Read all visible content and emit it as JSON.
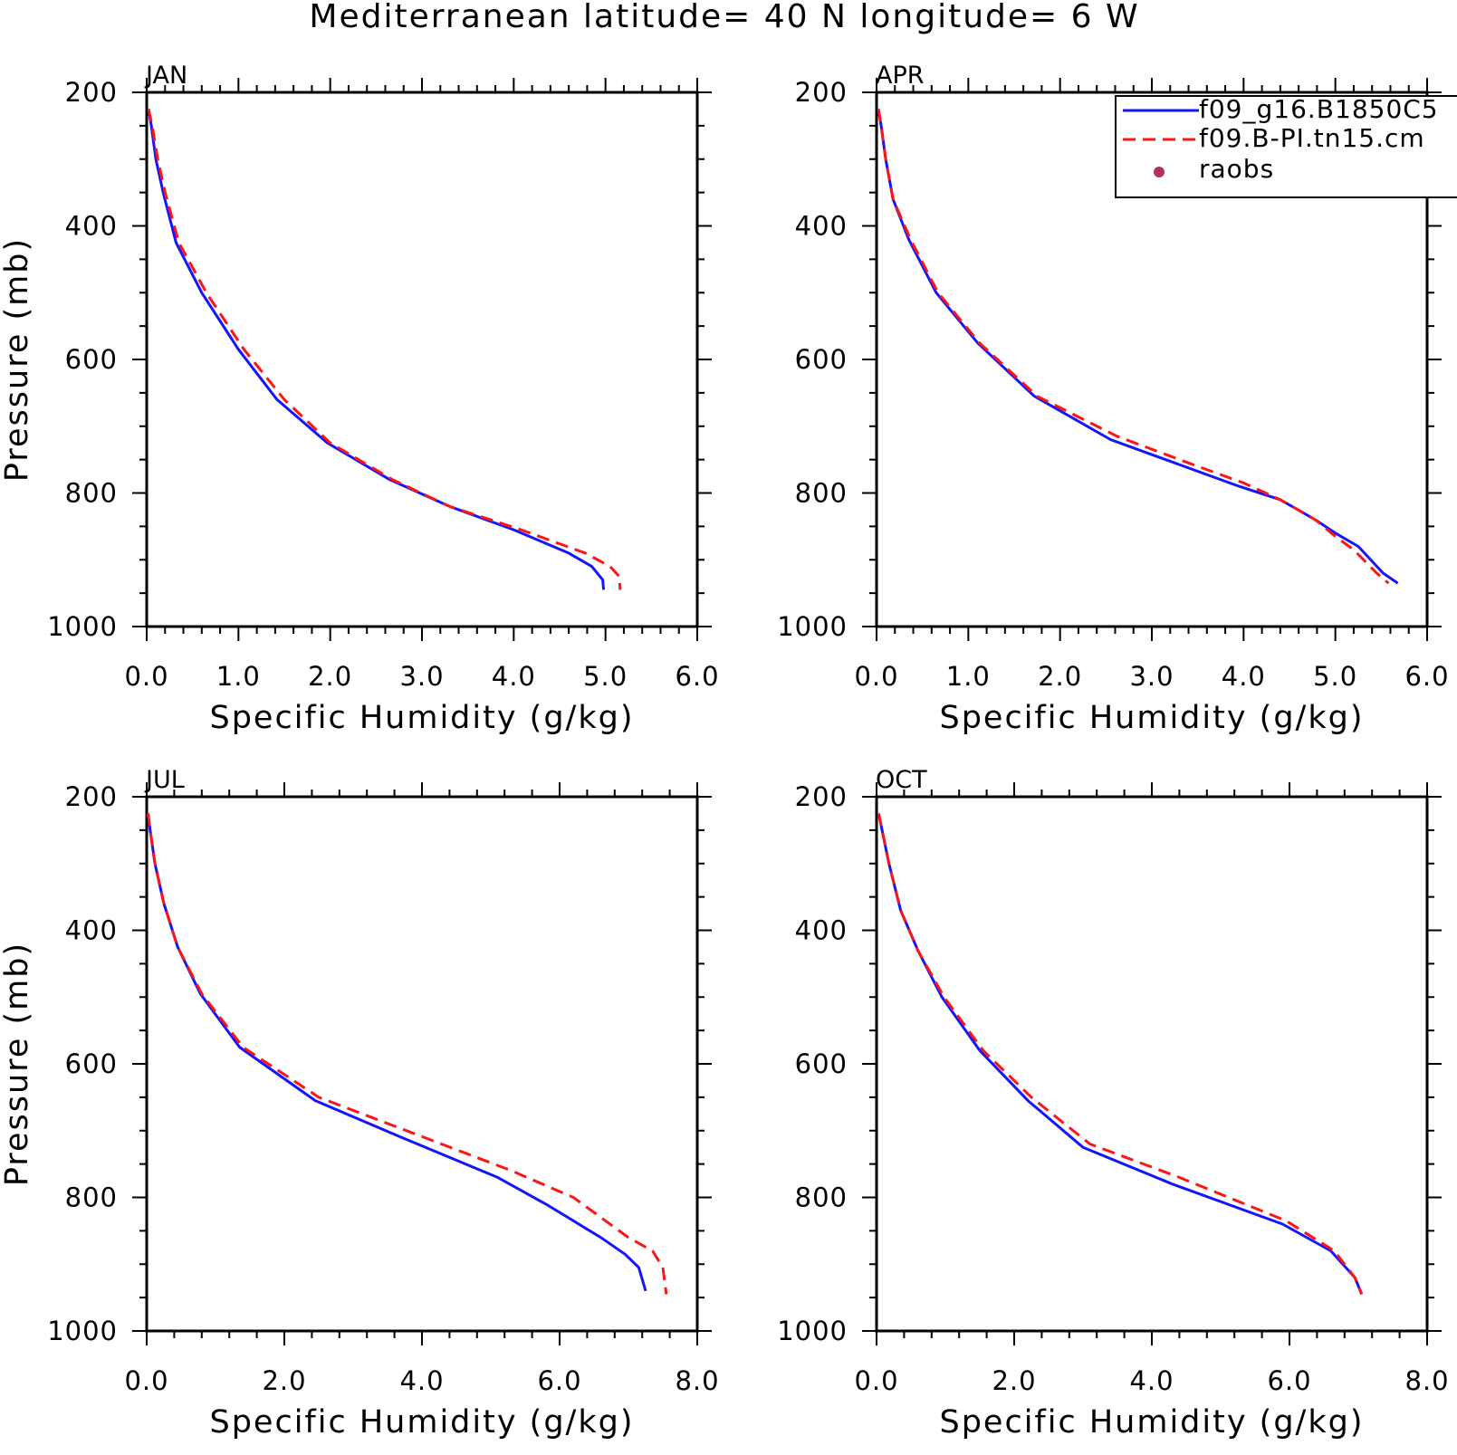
{
  "title": "Mediterranean  latitude= 40 N longitude= 6 W",
  "legend": {
    "entries": [
      {
        "label": "f09_g16.B1850C5",
        "color": "#1414ff",
        "style": "solid"
      },
      {
        "label": "f09.B-PI.tn15.cm",
        "color": "#ff1414",
        "style": "dashed"
      },
      {
        "label": "raobs",
        "color": "#b0305c",
        "style": "marker"
      }
    ]
  },
  "chart_data": [
    {
      "type": "line",
      "panel_label": "JAN",
      "xlabel": "Specific Humidity (g/kg)",
      "ylabel": "Pressure (mb)",
      "xlim": [
        0,
        6
      ],
      "ylim": [
        200,
        1000
      ],
      "y_inverted": true,
      "xticks": [
        "0.0",
        "1.0",
        "2.0",
        "3.0",
        "4.0",
        "5.0",
        "6.0"
      ],
      "yticks": [
        "200",
        "400",
        "600",
        "800",
        "1000"
      ],
      "series": [
        {
          "name": "f09_g16.B1850C5",
          "x": [
            0.02,
            0.05,
            0.1,
            0.18,
            0.32,
            0.6,
            1.0,
            1.42,
            1.97,
            2.65,
            3.3,
            4.0,
            4.6,
            4.85,
            4.97,
            4.98
          ],
          "y": [
            225,
            250,
            300,
            350,
            425,
            500,
            585,
            660,
            725,
            780,
            820,
            855,
            890,
            910,
            930,
            945
          ]
        },
        {
          "name": "f09.B-PI.tn15.cm",
          "x": [
            0.02,
            0.06,
            0.12,
            0.2,
            0.35,
            0.65,
            1.06,
            1.5,
            2.0,
            2.68,
            3.3,
            4.08,
            4.78,
            5.05,
            5.15,
            5.16
          ],
          "y": [
            225,
            250,
            300,
            350,
            425,
            500,
            585,
            660,
            725,
            780,
            820,
            855,
            890,
            910,
            925,
            945
          ]
        }
      ]
    },
    {
      "type": "line",
      "panel_label": "APR",
      "xlabel": "Specific Humidity (g/kg)",
      "ylabel": "Pressure (mb)",
      "xlim": [
        0,
        6
      ],
      "ylim": [
        200,
        1000
      ],
      "y_inverted": true,
      "xticks": [
        "0.0",
        "1.0",
        "2.0",
        "3.0",
        "4.0",
        "5.0",
        "6.0"
      ],
      "yticks": [
        "200",
        "400",
        "600",
        "800",
        "1000"
      ],
      "series": [
        {
          "name": "f09_g16.B1850C5",
          "x": [
            0.02,
            0.05,
            0.1,
            0.18,
            0.35,
            0.65,
            1.1,
            1.72,
            2.55,
            3.35,
            3.95,
            4.4,
            4.78,
            5.0,
            5.25,
            5.52,
            5.68
          ],
          "y": [
            225,
            250,
            300,
            360,
            420,
            500,
            575,
            655,
            720,
            760,
            790,
            810,
            840,
            860,
            880,
            920,
            935
          ]
        },
        {
          "name": "f09.B-PI.tn15.cm",
          "x": [
            0.02,
            0.05,
            0.1,
            0.18,
            0.37,
            0.67,
            1.12,
            1.75,
            2.62,
            3.4,
            4.0,
            4.4,
            4.78,
            5.0,
            5.2,
            5.45,
            5.58
          ],
          "y": [
            225,
            250,
            300,
            360,
            420,
            500,
            575,
            655,
            715,
            755,
            785,
            810,
            840,
            865,
            885,
            920,
            935
          ]
        }
      ]
    },
    {
      "type": "line",
      "panel_label": "JUL",
      "xlabel": "Specific Humidity (g/kg)",
      "ylabel": "Pressure (mb)",
      "xlim": [
        0,
        8
      ],
      "ylim": [
        200,
        1000
      ],
      "y_inverted": true,
      "xticks": [
        "0.0",
        "2.0",
        "4.0",
        "6.0",
        "8.0"
      ],
      "yticks": [
        "200",
        "400",
        "600",
        "800",
        "1000"
      ],
      "series": [
        {
          "name": "f09_g16.B1850C5",
          "x": [
            0.02,
            0.05,
            0.12,
            0.25,
            0.45,
            0.78,
            1.35,
            2.45,
            3.7,
            5.1,
            5.8,
            6.6,
            6.95,
            7.15,
            7.25
          ],
          "y": [
            225,
            250,
            300,
            360,
            425,
            495,
            575,
            655,
            710,
            770,
            810,
            860,
            885,
            905,
            940
          ]
        },
        {
          "name": "f09.B-PI.tn15.cm",
          "x": [
            0.02,
            0.05,
            0.12,
            0.25,
            0.45,
            0.8,
            1.4,
            2.5,
            3.9,
            5.3,
            6.2,
            7.0,
            7.35,
            7.5,
            7.55
          ],
          "y": [
            225,
            250,
            300,
            360,
            425,
            495,
            575,
            650,
            705,
            760,
            800,
            860,
            880,
            905,
            945
          ]
        }
      ]
    },
    {
      "type": "line",
      "panel_label": "OCT",
      "xlabel": "Specific Humidity (g/kg)",
      "ylabel": "Pressure (mb)",
      "xlim": [
        0,
        8
      ],
      "ylim": [
        200,
        1000
      ],
      "y_inverted": true,
      "xticks": [
        "0.0",
        "2.0",
        "4.0",
        "6.0",
        "8.0"
      ],
      "yticks": [
        "200",
        "400",
        "600",
        "800",
        "1000"
      ],
      "series": [
        {
          "name": "f09_g16.B1850C5",
          "x": [
            0.03,
            0.08,
            0.18,
            0.35,
            0.6,
            0.95,
            1.5,
            2.2,
            3.0,
            4.3,
            5.9,
            6.6,
            6.95,
            7.05
          ],
          "y": [
            225,
            250,
            300,
            370,
            430,
            500,
            580,
            655,
            725,
            780,
            840,
            880,
            920,
            945
          ]
        },
        {
          "name": "f09.B-PI.tn15.cm",
          "x": [
            0.03,
            0.08,
            0.18,
            0.35,
            0.6,
            0.98,
            1.55,
            2.25,
            3.1,
            4.4,
            5.95,
            6.65,
            6.95,
            7.05
          ],
          "y": [
            225,
            250,
            300,
            370,
            430,
            500,
            580,
            650,
            720,
            770,
            835,
            880,
            920,
            945
          ]
        }
      ]
    }
  ]
}
